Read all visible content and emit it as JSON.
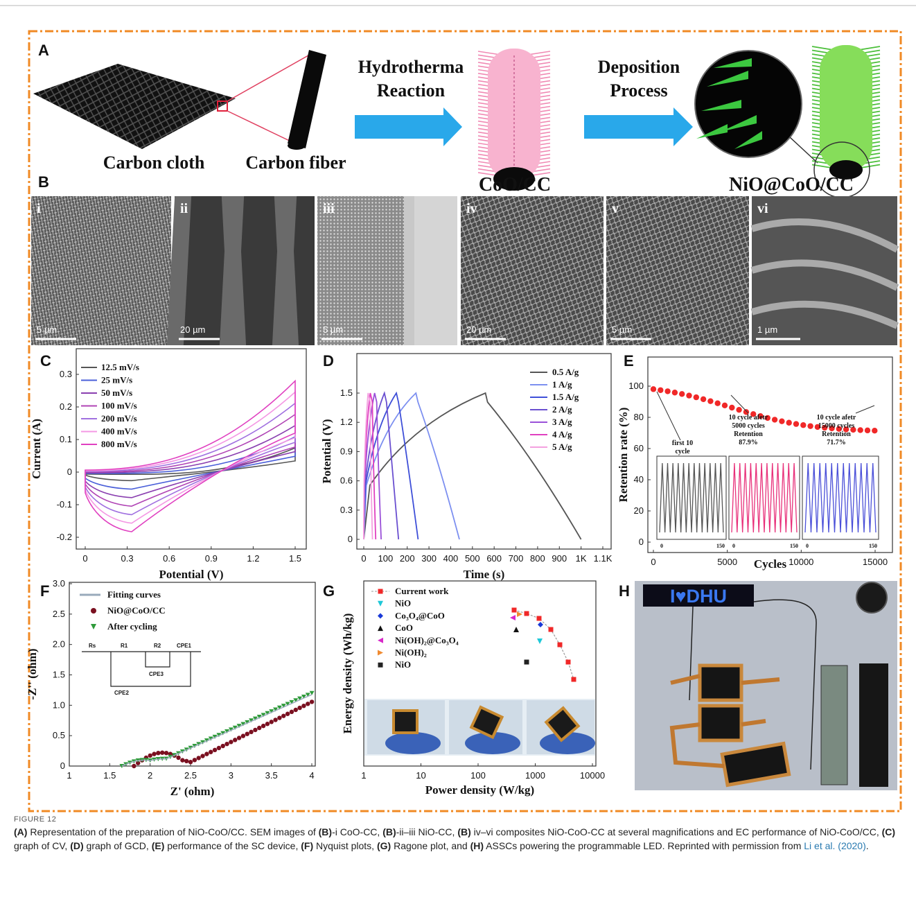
{
  "figure": {
    "panel_a": {
      "label": "A",
      "carbon_cloth": "Carbon cloth",
      "carbon_fiber": "Carbon fiber",
      "step_1": [
        "Hydrotherma",
        "Reaction"
      ],
      "step_2": [
        "Deposition",
        "Process"
      ],
      "product_1": "CoO/CC",
      "product_2": "NiO@CoO/CC"
    },
    "panel_b": {
      "label": "B",
      "images": [
        {
          "label": "i",
          "scale_bar": "5 µm"
        },
        {
          "label": "ii",
          "scale_bar": "20 µm"
        },
        {
          "label": "iii",
          "scale_bar": "5 µm"
        },
        {
          "label": "iv",
          "scale_bar": "20 µm"
        },
        {
          "label": "v",
          "scale_bar": "5 µm"
        },
        {
          "label": "vi",
          "scale_bar": "1 µm"
        }
      ]
    },
    "panel_c": {
      "label": "C",
      "x_label": "Potential (V)",
      "y_label": "Current (A)",
      "x_ticks": [
        "0",
        "0.3",
        "0.6",
        "0.9",
        "1.2",
        "1.5"
      ],
      "y_ticks": [
        "0.3",
        "0.2",
        "0.1",
        "0",
        "-0.1",
        "-0.2"
      ],
      "legend": [
        "12.5 mV/s",
        "25 mV/s",
        "50 mV/s",
        "100 mV/s",
        "200 mV/s",
        "400 mV/s",
        "800 mV/s"
      ]
    },
    "panel_d": {
      "label": "D",
      "x_label": "Time (s)",
      "y_label": "Potential (V)",
      "x_ticks": [
        "0",
        "100",
        "200",
        "300",
        "400",
        "500",
        "600",
        "700",
        "800",
        "900",
        "1K",
        "1.1K"
      ],
      "y_ticks": [
        "1.5",
        "1.2",
        "0.9",
        "0.6",
        "0.3",
        "0"
      ],
      "legend": [
        "0.5 A/g",
        "1 A/g",
        "1.5 A/g",
        "2 A/g",
        "3 A/g",
        "4 A/g",
        "5 A/g"
      ]
    },
    "panel_e": {
      "label": "E",
      "x_label": "Cycles",
      "y_label": "Retention rate (%)",
      "x_ticks": [
        "0",
        "5000",
        "10000",
        "15000"
      ],
      "y_ticks": [
        "100",
        "80",
        "60",
        "40",
        "20",
        "0"
      ],
      "annotations": [
        [
          "first 10",
          "cycle"
        ],
        [
          "10 cycle afetr",
          "5000 cycles",
          "Retention",
          "87.9%"
        ],
        [
          "10 cycle afetr",
          "15000 cycles",
          "Retention",
          "71.7%"
        ]
      ],
      "inset_ticks": [
        [
          "0",
          "150"
        ],
        [
          "0",
          "150"
        ],
        [
          "0",
          "150"
        ]
      ]
    },
    "panel_f": {
      "label": "F",
      "x_label": "Z' (ohm)",
      "y_label": "-Z'' (ohm)",
      "x_ticks": [
        "1",
        "1.5",
        "2",
        "2.5",
        "3",
        "3.5",
        "4"
      ],
      "y_ticks": [
        "3.0",
        "2.5",
        "2.0",
        "1.5",
        "1.0",
        "0.5",
        "0"
      ],
      "legend": [
        "Fitting curves",
        "NiO@CoO/CC",
        "After cycling"
      ],
      "circuit": [
        "Rs",
        "R1",
        "R2",
        "CPE1",
        "CPE2",
        "CPE3"
      ]
    },
    "panel_g": {
      "label": "G",
      "x_label": "Power density (W/kg)",
      "y_label": "Energy density (Wh/kg)",
      "x_ticks": [
        "1",
        "10",
        "100",
        "1000",
        "10000"
      ],
      "legend": [
        "Current work",
        "NiO",
        "Co₃O₄@CoO",
        "CoO",
        "Ni(OH)₂@Co₃O₄",
        "Ni(OH)₂",
        "NiO"
      ]
    },
    "panel_h": {
      "label": "H",
      "led_text": "I♥DHU"
    }
  },
  "caption": {
    "label": "FIGURE 12",
    "segments": [
      "(A)",
      " Representation of the preparation of NiO-CoO/CC. SEM images of ",
      "(B)",
      "-i CoO-CC, ",
      "(B)",
      "-ii–iii NiO-CC, ",
      "(B)",
      " iv–vi composites NiO-CoO-CC at several magnifications and EC performance of NiO-CoO/CC, ",
      "(C)",
      " graph of CV, ",
      "(D)",
      " graph of GCD, ",
      "(E)",
      " performance of the SC device, ",
      "(F)",
      " Nyquist plots, ",
      "(G)",
      " Ragone plot, and ",
      "(H)",
      " ASSCs powering the programmable LED. Reprinted with permission from "
    ],
    "link": "Li et al. (2020)",
    "end": "."
  }
}
